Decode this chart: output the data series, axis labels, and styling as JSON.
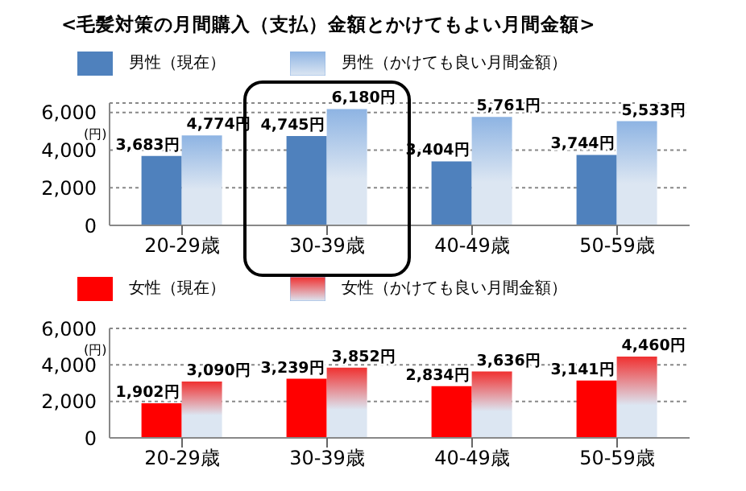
{
  "chart_data": [
    {
      "type": "bar",
      "title": "<毛髪対策の月間購入（支払）金額とかけてもよい月間金額>",
      "ylabel": "(円)",
      "categories": [
        "20-29歳",
        "30-39歳",
        "40-49歳",
        "50-59歳"
      ],
      "series": [
        {
          "name": "男性（現在）",
          "color": "#4f81bd",
          "values": [
            3683,
            4745,
            3404,
            3744
          ],
          "value_labels": [
            "3,683円",
            "4,745円",
            "3,404円",
            "3,744円"
          ]
        },
        {
          "name": "男性（かけても良い月間金額）",
          "color": "#8eb4e3",
          "values": [
            4774,
            6180,
            5761,
            5533
          ],
          "value_labels": [
            "4,774円",
            "6,180円",
            "5,761円",
            "5,533円"
          ]
        }
      ],
      "ylim": [
        0,
        6500
      ],
      "yticks": [
        0,
        {
          "value": 2000,
          "label": "2,000"
        },
        {
          "value": 4000,
          "label": "4,000"
        },
        {
          "value": 6000,
          "label": "6,000"
        }
      ],
      "grid": "y",
      "legend": "top"
    },
    {
      "type": "bar",
      "ylabel": "(円)",
      "categories": [
        "20-29歳",
        "30-39歳",
        "40-49歳",
        "50-59歳"
      ],
      "series": [
        {
          "name": "女性（現在）",
          "color": "#ff0000",
          "values": [
            1902,
            3239,
            2834,
            3141
          ],
          "value_labels": [
            "1,902円",
            "3,239円",
            "2,834円",
            "3,141円"
          ]
        },
        {
          "name": "女性（かけても良い月間金額）",
          "color": "#f03030",
          "values": [
            3090,
            3852,
            3636,
            4460
          ],
          "value_labels": [
            "3,090円",
            "3,852円",
            "3,636円",
            "4,460円"
          ]
        }
      ],
      "ylim": [
        0,
        6000
      ],
      "yticks": [
        0,
        {
          "value": 2000,
          "label": "2,000"
        },
        {
          "value": 4000,
          "label": "4,000"
        },
        {
          "value": 6000,
          "label": "6,000"
        }
      ],
      "grid": "y",
      "legend": "top"
    }
  ]
}
